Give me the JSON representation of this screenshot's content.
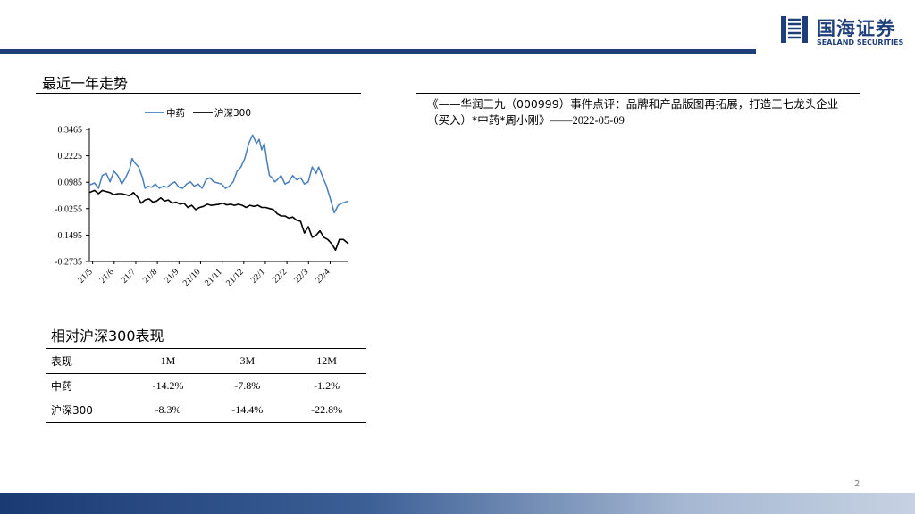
{
  "brand": {
    "name_cn": "国海证券",
    "name_en": "SEALAND SECURITIES",
    "color": "#1f3f7a"
  },
  "trend_section": {
    "title": "最近一年走势"
  },
  "report": {
    "text": "《——华润三九（000999）事件点评：品牌和产品版图再拓展，打造三七龙头企业（买入）*中药*周小刚》",
    "date": "——2022-05-09"
  },
  "chart_data": {
    "type": "line",
    "legend_position": "top",
    "y_ticks": [
      "0.3465",
      "0.2225",
      "0.0985",
      "-0.0255",
      "-0.1495",
      "-0.2735"
    ],
    "ylim": [
      -0.2735,
      0.3465
    ],
    "x_ticks": [
      "21/5",
      "21/6",
      "21/7",
      "21/8",
      "21/9",
      "21/10",
      "21/11",
      "21/12",
      "22/1",
      "22/2",
      "22/3",
      "22/4"
    ],
    "grid": false,
    "series": [
      {
        "name": "中药",
        "color": "#4a7ebb",
        "x": [
          0.0,
          0.02,
          0.035,
          0.05,
          0.065,
          0.08,
          0.095,
          0.11,
          0.125,
          0.14,
          0.155,
          0.165,
          0.175,
          0.19,
          0.205,
          0.215,
          0.225,
          0.24,
          0.255,
          0.27,
          0.285,
          0.3,
          0.315,
          0.33,
          0.345,
          0.36,
          0.375,
          0.39,
          0.405,
          0.42,
          0.435,
          0.45,
          0.465,
          0.48,
          0.495,
          0.51,
          0.525,
          0.54,
          0.555,
          0.57,
          0.585,
          0.6,
          0.615,
          0.63,
          0.645,
          0.655,
          0.665,
          0.675,
          0.685,
          0.695,
          0.705,
          0.715,
          0.725,
          0.74,
          0.755,
          0.77,
          0.785,
          0.8,
          0.815,
          0.83,
          0.845,
          0.86,
          0.875,
          0.885,
          0.895,
          0.905,
          0.915,
          0.93,
          0.945,
          0.96,
          0.975,
          1.0
        ],
        "values": [
          0.085,
          0.095,
          0.07,
          0.13,
          0.14,
          0.1,
          0.15,
          0.13,
          0.09,
          0.12,
          0.16,
          0.21,
          0.19,
          0.17,
          0.12,
          0.07,
          0.08,
          0.075,
          0.09,
          0.07,
          0.08,
          0.075,
          0.09,
          0.1,
          0.075,
          0.07,
          0.09,
          0.1,
          0.08,
          0.09,
          0.07,
          0.11,
          0.12,
          0.1,
          0.095,
          0.09,
          0.07,
          0.08,
          0.1,
          0.15,
          0.17,
          0.21,
          0.28,
          0.32,
          0.28,
          0.3,
          0.25,
          0.28,
          0.2,
          0.13,
          0.12,
          0.1,
          0.11,
          0.13,
          0.09,
          0.1,
          0.13,
          0.11,
          0.12,
          0.09,
          0.1,
          0.17,
          0.14,
          0.17,
          0.14,
          0.11,
          0.08,
          0.02,
          -0.045,
          -0.01,
          0.0,
          0.01
        ]
      },
      {
        "name": "沪深300",
        "color": "#000000",
        "x": [
          0.0,
          0.02,
          0.035,
          0.05,
          0.065,
          0.08,
          0.095,
          0.11,
          0.125,
          0.14,
          0.155,
          0.17,
          0.185,
          0.2,
          0.215,
          0.23,
          0.245,
          0.26,
          0.275,
          0.29,
          0.305,
          0.32,
          0.335,
          0.35,
          0.365,
          0.38,
          0.395,
          0.41,
          0.425,
          0.44,
          0.455,
          0.47,
          0.485,
          0.5,
          0.515,
          0.53,
          0.545,
          0.56,
          0.575,
          0.59,
          0.605,
          0.62,
          0.635,
          0.65,
          0.665,
          0.68,
          0.695,
          0.71,
          0.725,
          0.74,
          0.755,
          0.77,
          0.785,
          0.8,
          0.815,
          0.83,
          0.845,
          0.86,
          0.875,
          0.89,
          0.905,
          0.92,
          0.935,
          0.95,
          0.965,
          0.98,
          1.0
        ],
        "values": [
          0.05,
          0.06,
          0.045,
          0.06,
          0.055,
          0.05,
          0.04,
          0.045,
          0.045,
          0.04,
          0.035,
          0.05,
          0.03,
          0.0,
          0.015,
          0.02,
          0.005,
          0.01,
          0.025,
          0.01,
          0.015,
          0.0,
          0.005,
          -0.005,
          0.0,
          -0.02,
          -0.01,
          -0.03,
          -0.02,
          -0.015,
          -0.005,
          -0.01,
          -0.008,
          -0.005,
          0.0,
          -0.008,
          -0.005,
          -0.01,
          -0.005,
          -0.01,
          -0.02,
          -0.01,
          -0.015,
          -0.01,
          -0.02,
          -0.02,
          -0.025,
          -0.03,
          -0.05,
          -0.06,
          -0.06,
          -0.07,
          -0.065,
          -0.08,
          -0.085,
          -0.14,
          -0.11,
          -0.16,
          -0.15,
          -0.13,
          -0.16,
          -0.17,
          -0.19,
          -0.22,
          -0.17,
          -0.17,
          -0.19
        ]
      }
    ]
  },
  "perf_section": {
    "title": "相对沪深300表现",
    "header": {
      "label": "表现",
      "c1": "1M",
      "c2": "3M",
      "c3": "12M"
    },
    "rows": [
      {
        "label": "中药",
        "c1": "-14.2%",
        "c2": "-7.8%",
        "c3": "-1.2%"
      },
      {
        "label": "沪深300",
        "c1": "-8.3%",
        "c2": "-14.4%",
        "c3": "-22.8%"
      }
    ]
  },
  "page": {
    "number": "2"
  }
}
